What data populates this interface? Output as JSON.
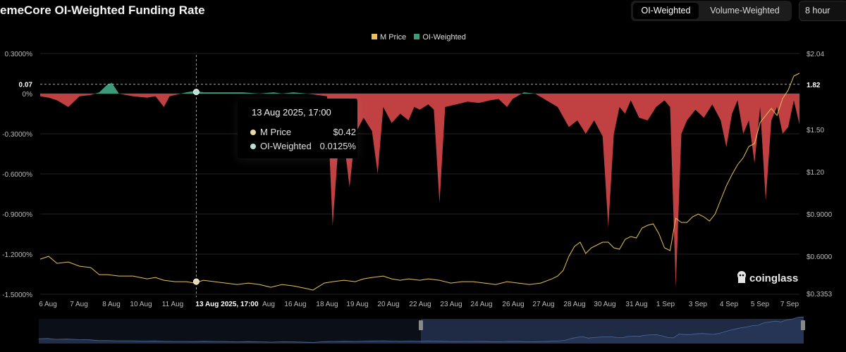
{
  "header": {
    "title": "emeCore OI-Weighted Funding Rate",
    "toggle": [
      "OI-Weighted",
      "Volume-Weighted"
    ],
    "active_toggle": "OI-Weighted",
    "period": "8 hour"
  },
  "legend": [
    {
      "label": "M Price",
      "color": "#e8c15a"
    },
    {
      "label": "OI-Weighted",
      "color": "#3c9a7a"
    }
  ],
  "tooltip": {
    "date": "13 Aug 2025, 17:00",
    "rows": [
      {
        "label": "M Price",
        "value": "$0.42",
        "dot_color": "#e8d9a6"
      },
      {
        "label": "OI-Weighted",
        "value": "0.0125%",
        "dot_color": "#b8e0d0"
      }
    ]
  },
  "crosshair_label": "13 Aug 2025, 17:00",
  "watermark": "coinglass",
  "colors": {
    "negative": "#c14142",
    "positive": "#3c9a7a",
    "price_line": "#e8c15a",
    "navigator": "#2a3a5c"
  },
  "chart_data": {
    "type": "area",
    "x_labels": [
      "6 Aug",
      "7 Aug",
      "8 Aug",
      "10 Aug",
      "11 Aug",
      "13 Aug 2025, 17:00",
      "Aug",
      "16 Aug",
      "18 Aug",
      "19 Aug",
      "20 Aug",
      "22 Aug",
      "23 Aug",
      "24 Aug",
      "26 Aug",
      "27 Aug",
      "28 Aug",
      "30 Aug",
      "31 Aug",
      "1 Sep",
      "3 Sep",
      "4 Sep",
      "5 Sep",
      "7 Sep"
    ],
    "x_range": [
      "6 Aug",
      "7 Sep"
    ],
    "y_left": {
      "ticks": [
        "0.3000%",
        "0.07",
        "0%",
        "-0.3000%",
        "-0.6000%",
        "-0.9000%",
        "-1.2000%",
        "-1.5000%"
      ],
      "range": [
        -1.5,
        0.3
      ],
      "unit": "%"
    },
    "y_right": {
      "ticks": [
        "$2.04",
        "1.82",
        "$1.50",
        "$1.20",
        "$0.9000",
        "$0.6000",
        "$0.3353"
      ],
      "range": [
        0.3353,
        2.04
      ],
      "unit": "$"
    },
    "reference_lines": {
      "funding_rate": 0.07,
      "price": 1.82
    },
    "series": [
      {
        "name": "OI-Weighted",
        "axis": "left",
        "points": [
          [
            0,
            -0.02
          ],
          [
            0.3,
            -0.03
          ],
          [
            0.6,
            -0.05
          ],
          [
            1,
            -0.1
          ],
          [
            1.4,
            -0.02
          ],
          [
            1.8,
            -0.01
          ],
          [
            2.1,
            0.01
          ],
          [
            2.4,
            0.07
          ],
          [
            2.55,
            0.08
          ],
          [
            2.8,
            0.0
          ],
          [
            3.3,
            -0.02
          ],
          [
            3.8,
            -0.03
          ],
          [
            4.1,
            -0.02
          ],
          [
            4.4,
            -0.1
          ],
          [
            4.6,
            -0.02
          ],
          [
            5.2,
            0.01
          ],
          [
            5.5,
            0.02
          ],
          [
            5.8,
            0.01
          ],
          [
            6.6,
            0.01
          ],
          [
            7.2,
            0.01
          ],
          [
            7.8,
            0.0
          ],
          [
            8.3,
            0.01
          ],
          [
            8.6,
            0.0
          ],
          [
            9.0,
            0.01
          ],
          [
            9.5,
            0.0
          ],
          [
            10.2,
            -0.02
          ],
          [
            10.4,
            -0.99
          ],
          [
            10.6,
            -0.4
          ],
          [
            10.8,
            -0.35
          ],
          [
            11.0,
            -0.7
          ],
          [
            11.2,
            -0.3
          ],
          [
            11.5,
            -0.18
          ],
          [
            11.8,
            -0.28
          ],
          [
            12.0,
            -0.6
          ],
          [
            12.2,
            -0.1
          ],
          [
            12.5,
            -0.22
          ],
          [
            12.8,
            -0.15
          ],
          [
            13.1,
            -0.2
          ],
          [
            13.3,
            -0.1
          ],
          [
            13.5,
            -0.12
          ],
          [
            13.8,
            -0.08
          ],
          [
            14.0,
            -0.12
          ],
          [
            14.2,
            -0.82
          ],
          [
            14.4,
            -0.1
          ],
          [
            14.8,
            -0.08
          ],
          [
            15.2,
            -0.06
          ],
          [
            15.6,
            -0.07
          ],
          [
            16.0,
            -0.05
          ],
          [
            16.3,
            -0.04
          ],
          [
            16.6,
            -0.1
          ],
          [
            16.8,
            -0.04
          ],
          [
            17.2,
            0.01
          ],
          [
            17.6,
            0.0
          ],
          [
            18.0,
            -0.05
          ],
          [
            18.4,
            -0.1
          ],
          [
            18.8,
            -0.25
          ],
          [
            19.1,
            -0.2
          ],
          [
            19.4,
            -0.3
          ],
          [
            19.7,
            -0.2
          ],
          [
            20.0,
            -0.32
          ],
          [
            20.2,
            -1.0
          ],
          [
            20.4,
            -0.3
          ],
          [
            20.6,
            -0.1
          ],
          [
            20.8,
            -0.15
          ],
          [
            21.0,
            -0.05
          ],
          [
            21.3,
            -0.18
          ],
          [
            21.6,
            -0.2
          ],
          [
            21.9,
            -0.1
          ],
          [
            22.2,
            -0.05
          ],
          [
            22.4,
            -0.1
          ],
          [
            22.6,
            -1.45
          ],
          [
            22.8,
            -0.3
          ],
          [
            23.0,
            -0.2
          ],
          [
            23.3,
            -0.12
          ],
          [
            23.6,
            -0.18
          ],
          [
            23.9,
            -0.08
          ],
          [
            24.2,
            -0.2
          ],
          [
            24.4,
            -0.4
          ],
          [
            24.6,
            -0.15
          ],
          [
            24.8,
            -0.05
          ],
          [
            25.0,
            -0.3
          ],
          [
            25.2,
            -0.2
          ],
          [
            25.4,
            -0.52
          ],
          [
            25.6,
            -0.1
          ],
          [
            25.8,
            -0.8
          ],
          [
            26.0,
            -0.2
          ],
          [
            26.2,
            -0.1
          ],
          [
            26.4,
            -0.3
          ],
          [
            26.6,
            -0.25
          ],
          [
            26.8,
            -0.05
          ],
          [
            27.0,
            -0.23
          ]
        ]
      },
      {
        "name": "M Price",
        "axis": "right",
        "points": [
          [
            0,
            0.58
          ],
          [
            0.3,
            0.6
          ],
          [
            0.6,
            0.55
          ],
          [
            1,
            0.56
          ],
          [
            1.4,
            0.53
          ],
          [
            1.8,
            0.52
          ],
          [
            2.1,
            0.47
          ],
          [
            2.4,
            0.47
          ],
          [
            2.8,
            0.46
          ],
          [
            3.3,
            0.46
          ],
          [
            3.8,
            0.44
          ],
          [
            4.1,
            0.45
          ],
          [
            4.4,
            0.43
          ],
          [
            4.8,
            0.42
          ],
          [
            5.2,
            0.42
          ],
          [
            5.5,
            0.41
          ],
          [
            5.8,
            0.43
          ],
          [
            6.2,
            0.42
          ],
          [
            6.6,
            0.41
          ],
          [
            7.0,
            0.4
          ],
          [
            7.4,
            0.41
          ],
          [
            7.8,
            0.4
          ],
          [
            8.2,
            0.38
          ],
          [
            8.6,
            0.4
          ],
          [
            9.0,
            0.39
          ],
          [
            9.5,
            0.37
          ],
          [
            9.7,
            0.36
          ],
          [
            10.1,
            0.41
          ],
          [
            10.4,
            0.42
          ],
          [
            10.8,
            0.43
          ],
          [
            11.2,
            0.42
          ],
          [
            11.5,
            0.44
          ],
          [
            11.8,
            0.45
          ],
          [
            12.2,
            0.46
          ],
          [
            12.5,
            0.44
          ],
          [
            12.8,
            0.43
          ],
          [
            13.1,
            0.44
          ],
          [
            13.5,
            0.43
          ],
          [
            13.8,
            0.44
          ],
          [
            14.2,
            0.43
          ],
          [
            14.6,
            0.41
          ],
          [
            15.0,
            0.42
          ],
          [
            15.4,
            0.42
          ],
          [
            15.8,
            0.41
          ],
          [
            16.2,
            0.4
          ],
          [
            16.6,
            0.42
          ],
          [
            17.0,
            0.41
          ],
          [
            17.4,
            0.4
          ],
          [
            17.8,
            0.41
          ],
          [
            18.2,
            0.44
          ],
          [
            18.4,
            0.46
          ],
          [
            18.6,
            0.5
          ],
          [
            18.8,
            0.6
          ],
          [
            19.0,
            0.67
          ],
          [
            19.2,
            0.7
          ],
          [
            19.4,
            0.62
          ],
          [
            19.6,
            0.66
          ],
          [
            19.8,
            0.68
          ],
          [
            20.0,
            0.7
          ],
          [
            20.2,
            0.7
          ],
          [
            20.4,
            0.66
          ],
          [
            20.6,
            0.65
          ],
          [
            20.8,
            0.72
          ],
          [
            21.0,
            0.74
          ],
          [
            21.2,
            0.73
          ],
          [
            21.4,
            0.8
          ],
          [
            21.6,
            0.82
          ],
          [
            21.8,
            0.83
          ],
          [
            22.0,
            0.76
          ],
          [
            22.2,
            0.66
          ],
          [
            22.4,
            0.64
          ],
          [
            22.6,
            0.87
          ],
          [
            22.8,
            0.84
          ],
          [
            23.0,
            0.84
          ],
          [
            23.2,
            0.88
          ],
          [
            23.4,
            0.9
          ],
          [
            23.6,
            0.88
          ],
          [
            23.8,
            0.85
          ],
          [
            24.0,
            0.9
          ],
          [
            24.2,
            1.0
          ],
          [
            24.4,
            1.1
          ],
          [
            24.6,
            1.18
          ],
          [
            24.8,
            1.25
          ],
          [
            25.0,
            1.3
          ],
          [
            25.2,
            1.38
          ],
          [
            25.4,
            1.4
          ],
          [
            25.6,
            1.55
          ],
          [
            25.8,
            1.6
          ],
          [
            26.0,
            1.65
          ],
          [
            26.2,
            1.6
          ],
          [
            26.4,
            1.72
          ],
          [
            26.6,
            1.78
          ],
          [
            26.8,
            1.88
          ],
          [
            27.0,
            1.9
          ]
        ]
      }
    ],
    "crosshair": {
      "date": "13 Aug 2025, 17:00",
      "price": 0.42,
      "funding_rate": 0.0125
    },
    "legend_position": "top-center",
    "grid": true
  }
}
